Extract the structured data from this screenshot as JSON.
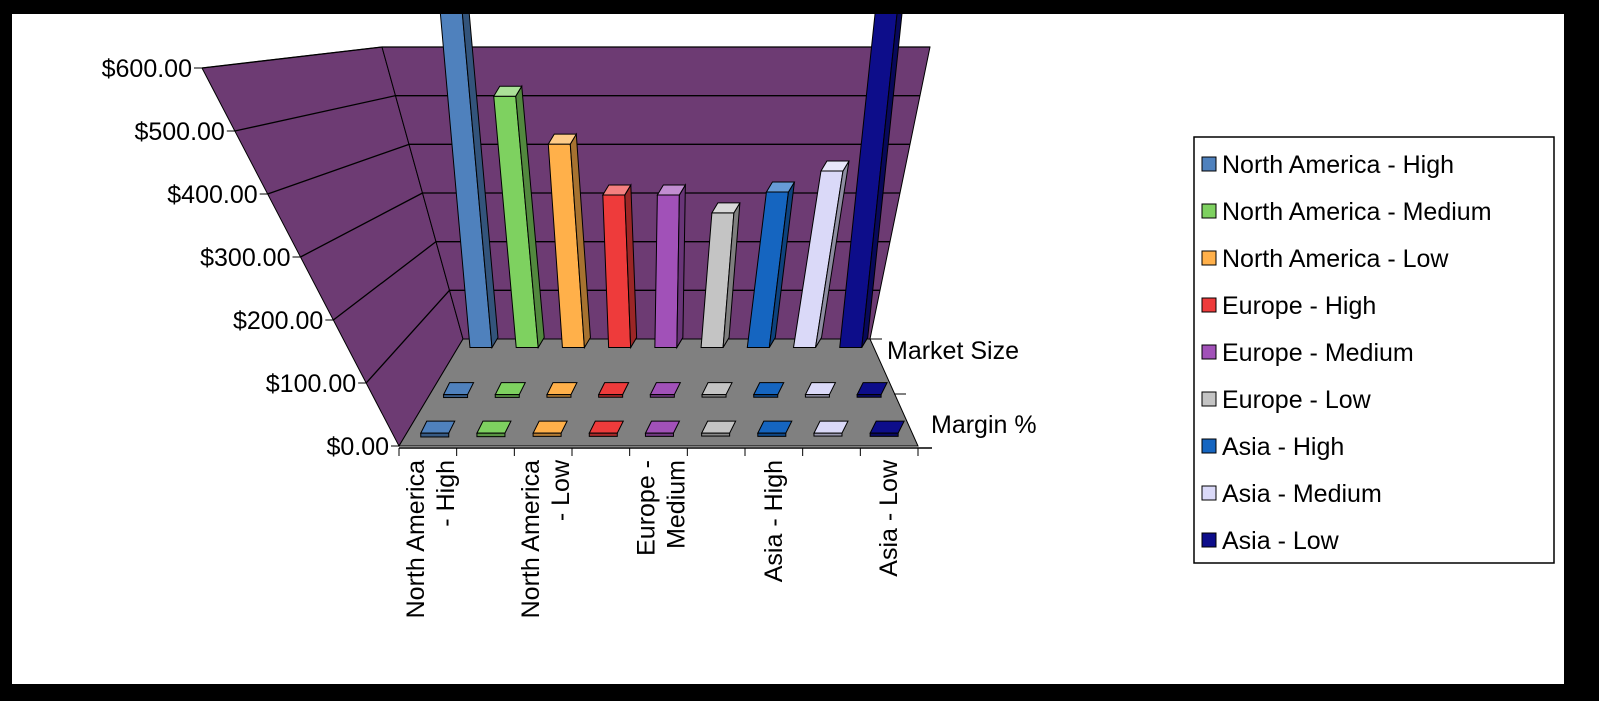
{
  "chart_data": {
    "type": "bar",
    "subtype": "3d-bar",
    "categories": [
      "North America - High",
      "North America - Medium",
      "North America - Low",
      "Europe - High",
      "Europe - Medium",
      "Europe - Low",
      "Asia - High",
      "Asia - Medium",
      "Asia - Low"
    ],
    "x_tick_labels": [
      {
        "category_index": 0,
        "lines": [
          "North America",
          "- High"
        ]
      },
      {
        "category_index": 2,
        "lines": [
          "North America",
          "- Low"
        ]
      },
      {
        "category_index": 4,
        "lines": [
          "Europe -",
          "Medium"
        ]
      },
      {
        "category_index": 6,
        "lines": [
          "Asia - High"
        ]
      },
      {
        "category_index": 8,
        "lines": [
          "Asia - Low"
        ]
      }
    ],
    "depth_labels": [
      "Market Size",
      "Margin %"
    ],
    "series": [
      {
        "name": "Market Size",
        "values": [
          580,
          420,
          340,
          255,
          255,
          225,
          260,
          295,
          565
        ]
      },
      {
        "name": "Margin %",
        "values": [
          0.3,
          0.25,
          0.2,
          0.2,
          0.2,
          0.15,
          0.2,
          0.15,
          0.2
        ]
      }
    ],
    "y_ticks": [
      "$0.00",
      "$100.00",
      "$200.00",
      "$300.00",
      "$400.00",
      "$500.00",
      "$600.00"
    ],
    "ylim": [
      0,
      600
    ],
    "legend": {
      "position": "right",
      "entries": [
        {
          "label": "North America - High",
          "color": "#4f81bd"
        },
        {
          "label": "North America - Medium",
          "color": "#7ed160"
        },
        {
          "label": "North America - Low",
          "color": "#ffb04a"
        },
        {
          "label": "Europe - High",
          "color": "#ee3b3b"
        },
        {
          "label": "Europe - Medium",
          "color": "#a151b8"
        },
        {
          "label": "Europe - Low",
          "color": "#c4c4c4"
        },
        {
          "label": "Asia - High",
          "color": "#1565c0"
        },
        {
          "label": "Asia - Medium",
          "color": "#dad9f8"
        },
        {
          "label": "Asia - Low",
          "color": "#0d0d8a"
        }
      ]
    },
    "colors": {
      "wall": "#6d3b73",
      "floor": "#808080",
      "gridline": "#000000",
      "background": "#ffffff",
      "border": "#000000"
    },
    "grid": true
  }
}
